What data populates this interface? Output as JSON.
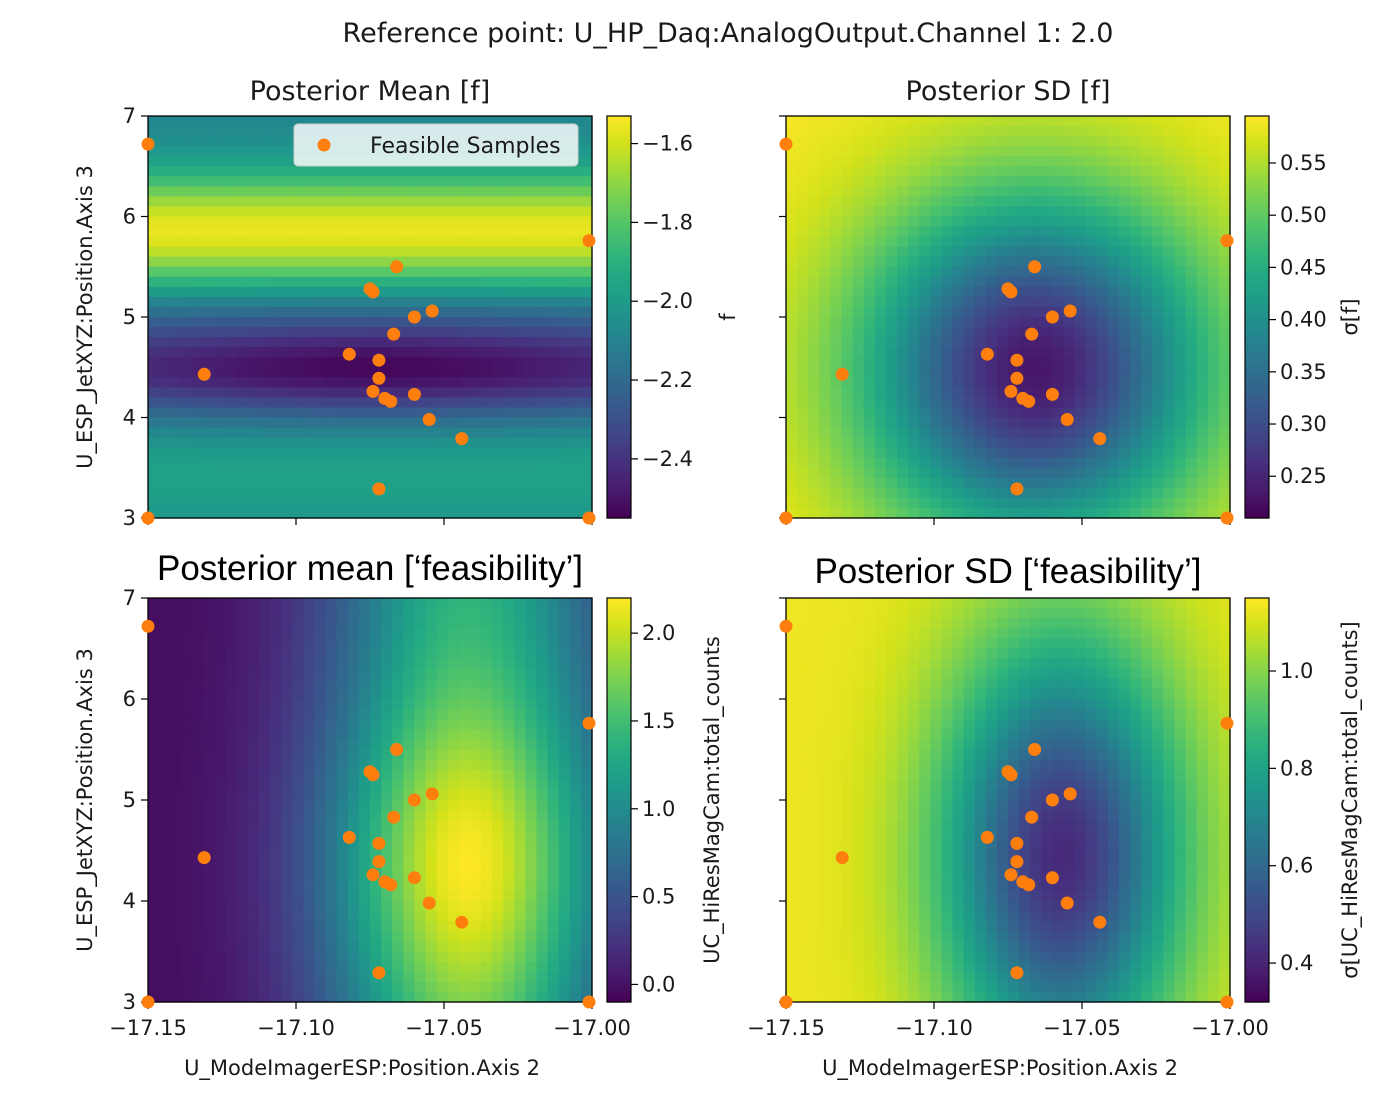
{
  "chart_data": {
    "suptitle": "Reference point: U_HP_Daq:AnalogOutput.Channel 1: 2.0",
    "panels": [
      {
        "type": "heatmap",
        "title": "Posterior Mean [f]",
        "title_style": "normal",
        "ylabel": "U_ESP_JetXYZ:Position.Axis 3",
        "xlabel": "",
        "show_y_ticks": true,
        "show_x_ticks": false,
        "colorbar_label": "f",
        "colorbar_range": [
          -2.55,
          -1.53
        ],
        "colorbar_ticks": [
          -1.6,
          -1.8,
          -2.0,
          -2.2,
          -2.4
        ],
        "colorbar_tick_labels": [
          "−1.6",
          "−1.8",
          "−2.0",
          "−2.2",
          "−2.4"
        ],
        "field": "mean_f",
        "legend": "Feasible Samples"
      },
      {
        "type": "heatmap",
        "title": "Posterior SD [f]",
        "title_style": "normal",
        "ylabel": "",
        "xlabel": "",
        "show_y_ticks": false,
        "show_x_ticks": false,
        "colorbar_label": "σ[f]",
        "colorbar_range": [
          0.21,
          0.595
        ],
        "colorbar_ticks": [
          0.55,
          0.5,
          0.45,
          0.4,
          0.35,
          0.3,
          0.25
        ],
        "colorbar_tick_labels": [
          "0.55",
          "0.50",
          "0.45",
          "0.40",
          "0.35",
          "0.30",
          "0.25"
        ],
        "field": "sd_f",
        "legend": ""
      },
      {
        "type": "heatmap",
        "title": "Posterior mean [‘feasibility’]",
        "title_style": "big",
        "ylabel": "U_ESP_JetXYZ:Position.Axis 3",
        "xlabel": "U_ModeImagerESP:Position.Axis 2",
        "show_y_ticks": true,
        "show_x_ticks": true,
        "colorbar_label": "UC_HiResMagCam:total_counts",
        "colorbar_range": [
          -0.1,
          2.2
        ],
        "colorbar_ticks": [
          2.0,
          1.5,
          1.0,
          0.5,
          0.0
        ],
        "colorbar_tick_labels": [
          "2.0",
          "1.5",
          "1.0",
          "0.5",
          "0.0"
        ],
        "field": "mean_feas",
        "legend": ""
      },
      {
        "type": "heatmap",
        "title": "Posterior SD [‘feasibility’]",
        "title_style": "big",
        "ylabel": "",
        "xlabel": "U_ModeImagerESP:Position.Axis 2",
        "show_y_ticks": false,
        "show_x_ticks": true,
        "colorbar_label": "σ[UC_HiResMagCam:total_counts]",
        "colorbar_range": [
          0.32,
          1.15
        ],
        "colorbar_ticks": [
          1.0,
          0.8,
          0.6,
          0.4
        ],
        "colorbar_tick_labels": [
          "1.0",
          "0.8",
          "0.6",
          "0.4"
        ],
        "field": "sd_feas",
        "legend": ""
      }
    ],
    "x_range": [
      -17.15,
      -17.0
    ],
    "y_range": [
      3.0,
      7.0
    ],
    "x_ticks": [
      -17.15,
      -17.1,
      -17.05,
      -17.0
    ],
    "x_tick_labels": [
      "−17.15",
      "−17.10",
      "−17.05",
      "−17.00"
    ],
    "y_ticks": [
      3,
      4,
      5,
      6,
      7
    ],
    "y_tick_labels": [
      "3",
      "4",
      "5",
      "6",
      "7"
    ],
    "samples": {
      "name": "Feasible Samples",
      "color": "#ff7f0e",
      "points": [
        [
          -17.15,
          6.72
        ],
        [
          -17.15,
          3.0
        ],
        [
          -17.001,
          5.76
        ],
        [
          -17.001,
          3.0
        ],
        [
          -17.131,
          4.43
        ],
        [
          -17.066,
          5.5
        ],
        [
          -17.075,
          5.28
        ],
        [
          -17.074,
          5.25
        ],
        [
          -17.054,
          5.06
        ],
        [
          -17.06,
          5.0
        ],
        [
          -17.067,
          4.83
        ],
        [
          -17.082,
          4.63
        ],
        [
          -17.072,
          4.57
        ],
        [
          -17.072,
          4.39
        ],
        [
          -17.074,
          4.26
        ],
        [
          -17.07,
          4.19
        ],
        [
          -17.068,
          4.16
        ],
        [
          -17.06,
          4.23
        ],
        [
          -17.055,
          3.98
        ],
        [
          -17.044,
          3.79
        ],
        [
          -17.072,
          3.29
        ]
      ]
    },
    "colormap": "viridis",
    "colors": {
      "sample_marker": "#ff7f0e",
      "viridis_low": "#440154",
      "viridis_high": "#fde725"
    }
  }
}
